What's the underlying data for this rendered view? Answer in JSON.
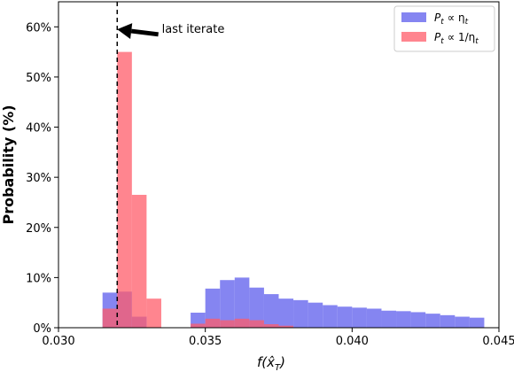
{
  "chart_data": {
    "type": "bar",
    "subtype": "overlapping-histogram",
    "title": "",
    "xlabel": "f(x̂_T)",
    "ylabel": "Probability (%)",
    "xlim": [
      0.03,
      0.045
    ],
    "ylim": [
      0,
      65
    ],
    "x_ticks": [
      {
        "value": 0.03,
        "label": "0.030"
      },
      {
        "value": 0.035,
        "label": "0.035"
      },
      {
        "value": 0.04,
        "label": "0.040"
      },
      {
        "value": 0.045,
        "label": "0.045"
      }
    ],
    "y_ticks": [
      {
        "value": 0,
        "label": "0%"
      },
      {
        "value": 10,
        "label": "10%"
      },
      {
        "value": 20,
        "label": "20%"
      },
      {
        "value": 30,
        "label": "30%"
      },
      {
        "value": 40,
        "label": "40%"
      },
      {
        "value": 50,
        "label": "50%"
      },
      {
        "value": 60,
        "label": "60%"
      }
    ],
    "grid": false,
    "legend_position": "top-right",
    "series": [
      {
        "name": "P_t ∝ η_t",
        "legend_main": "P",
        "legend_sub1": "t",
        "legend_rel": " ∝ η",
        "legend_sub2": "t",
        "color": "#6666ee",
        "opacity": 0.8,
        "bin_start": 0.0315,
        "bin_width": 0.0005,
        "values": [
          7,
          7.2,
          2.2,
          0,
          0,
          0,
          3,
          7.8,
          9.5,
          10,
          8,
          6.7,
          5.8,
          5.5,
          5,
          4.5,
          4.2,
          4,
          3.8,
          3.4,
          3.3,
          3.1,
          2.8,
          2.5,
          2.2,
          2.0
        ]
      },
      {
        "name": "P_t ∝ 1/η_t",
        "legend_main": "P",
        "legend_sub1": "t",
        "legend_rel": " ∝ 1/η",
        "legend_sub2": "t",
        "color": "#ff5c6a",
        "opacity": 0.75,
        "bin_start": 0.0315,
        "bin_width": 0.0005,
        "values": [
          3.8,
          55,
          26.5,
          5.8,
          0,
          0,
          0.8,
          1.8,
          1.5,
          1.8,
          1.5,
          0.7,
          0.4
        ]
      }
    ],
    "annotation": {
      "text": "last iterate",
      "vline_x": 0.032,
      "arrow_tip": {
        "x": 0.032,
        "y": 59.5
      },
      "arrow_tail": {
        "x": 0.0334,
        "y": 58.5
      }
    }
  }
}
